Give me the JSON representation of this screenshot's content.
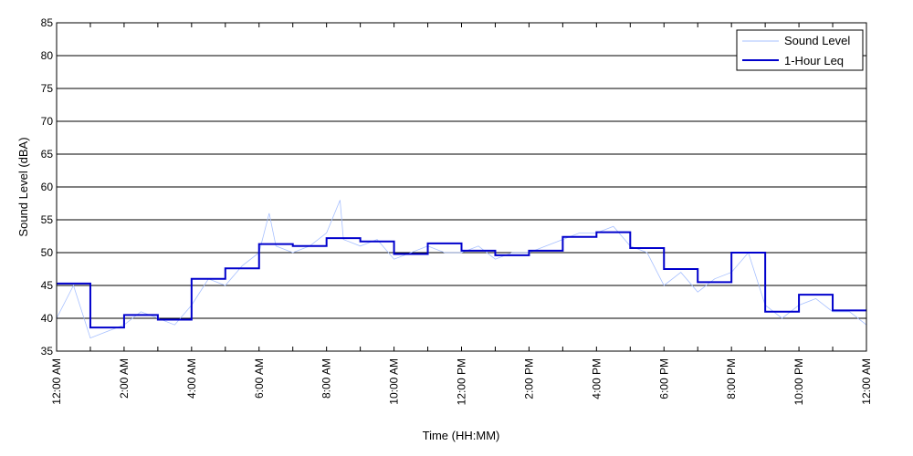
{
  "chart_data": {
    "type": "line",
    "title": "",
    "xlabel": "Time (HH:MM)",
    "ylabel": "Sound Level (dBA)",
    "ylim": [
      35,
      85
    ],
    "xlim": [
      0,
      24
    ],
    "y_ticks": [
      35,
      40,
      45,
      50,
      55,
      60,
      65,
      70,
      75,
      80,
      85
    ],
    "x_tick_hours": [
      0,
      2,
      4,
      6,
      8,
      10,
      12,
      14,
      16,
      18,
      20,
      22,
      24
    ],
    "x_tick_labels": [
      "12:00 AM",
      "2:00 AM",
      "4:00 AM",
      "6:00 AM",
      "8:00 AM",
      "10:00 AM",
      "12:00 PM",
      "2:00 PM",
      "4:00 PM",
      "6:00 PM",
      "8:00 PM",
      "10:00 PM",
      "12:00 AM"
    ],
    "grid": "horizontal",
    "legend_position": "top-right",
    "series": [
      {
        "name": "Sound Level",
        "color": "#a7c0ff",
        "x": [
          0.0,
          0.5,
          1.0,
          1.5,
          2.0,
          2.5,
          3.0,
          3.5,
          4.0,
          4.5,
          5.0,
          5.5,
          6.0,
          6.3,
          6.5,
          7.0,
          7.5,
          8.0,
          8.4,
          8.5,
          9.0,
          9.5,
          10.0,
          10.5,
          11.0,
          11.5,
          12.0,
          12.5,
          13.0,
          13.5,
          14.0,
          14.5,
          15.0,
          15.5,
          16.0,
          16.5,
          17.0,
          17.5,
          18.0,
          18.5,
          19.0,
          19.5,
          20.0,
          20.5,
          21.0,
          21.5,
          22.0,
          22.5,
          23.0,
          23.5,
          24.0
        ],
        "values": [
          40,
          45,
          37,
          38,
          39,
          41,
          40,
          39,
          42,
          46,
          45,
          48,
          50,
          56,
          51,
          50,
          51,
          53,
          58,
          52,
          51,
          52,
          49,
          50,
          51,
          50,
          50,
          51,
          49,
          50,
          50,
          51,
          52,
          53,
          53,
          54,
          51,
          50,
          45,
          47,
          44,
          46,
          47,
          50,
          42,
          40,
          42,
          43,
          41,
          41,
          39
        ]
      },
      {
        "name": "1-Hour Leq",
        "color": "#0000cc",
        "step": true,
        "x": [
          0,
          1,
          2,
          3,
          4,
          5,
          6,
          7,
          8,
          9,
          10,
          11,
          12,
          13,
          14,
          15,
          16,
          17,
          18,
          19,
          20,
          21,
          22,
          23
        ],
        "values": [
          45.3,
          38.6,
          40.5,
          39.8,
          46.0,
          47.6,
          51.3,
          51.0,
          52.2,
          51.7,
          49.8,
          51.4,
          50.3,
          49.6,
          50.3,
          52.4,
          53.1,
          50.7,
          47.5,
          45.5,
          50.0,
          41.0,
          43.6,
          41.2
        ]
      }
    ]
  }
}
